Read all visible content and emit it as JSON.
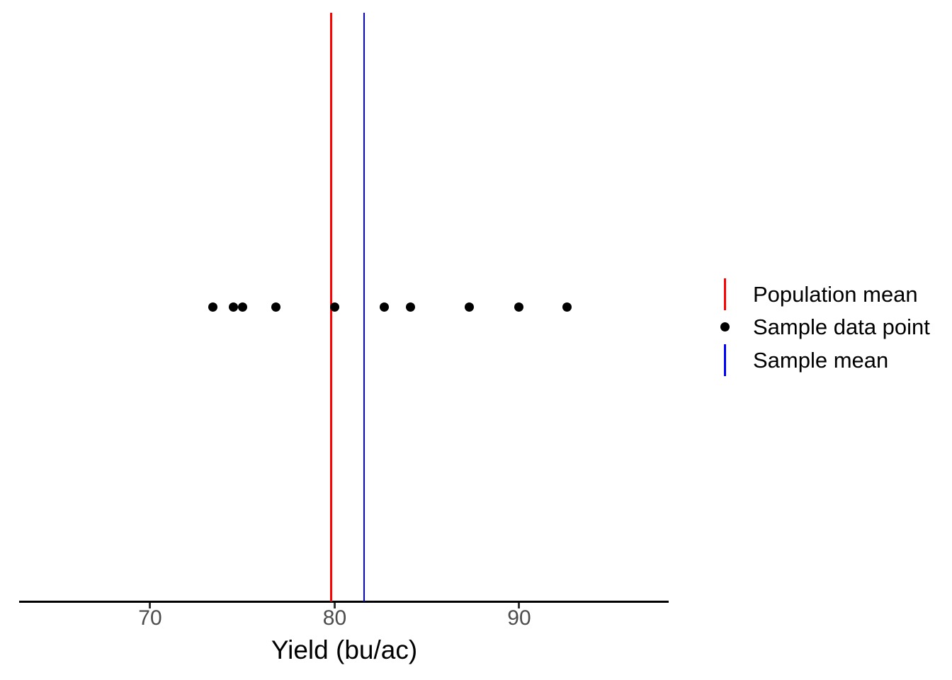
{
  "chart_data": {
    "type": "scatter",
    "title": "",
    "xlabel": "Yield (bu/ac)",
    "ylabel": "",
    "xlim": [
      62.9,
      98.1
    ],
    "x_ticks": [
      70,
      80,
      90
    ],
    "grid": false,
    "legend_position": "right-center",
    "points": [
      73.4,
      74.5,
      75.0,
      76.8,
      80.0,
      82.7,
      84.1,
      87.3,
      90.0,
      92.6
    ],
    "population_mean": 79.8,
    "sample_mean": 81.6
  },
  "legend": {
    "items": [
      {
        "label": "Population mean",
        "marker": "vline",
        "color": "#FF0000"
      },
      {
        "label": "Sample data point",
        "marker": "dot",
        "color": "#000000"
      },
      {
        "label": "Sample mean",
        "marker": "vline",
        "color": "#0000FF"
      }
    ]
  },
  "colors": {
    "population_mean_line": "#FF0000",
    "sample_mean_line": "#0000FF",
    "data_point": "#000000",
    "axis_line": "#000000",
    "tick_mark": "#333333",
    "tick_label": "#4D4D4D",
    "axis_title": "#000000",
    "legend_text": "#000000",
    "background": "#FFFFFF"
  }
}
